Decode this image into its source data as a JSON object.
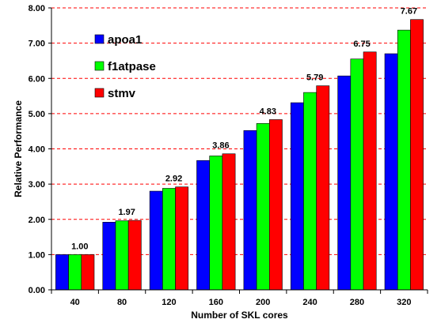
{
  "chart_data": {
    "type": "bar",
    "title": "",
    "xlabel": "Number of SKL cores",
    "ylabel": "Relative Performance",
    "categories": [
      "40",
      "80",
      "120",
      "160",
      "200",
      "240",
      "280",
      "320"
    ],
    "series": [
      {
        "name": "apoa1",
        "color": "#0000ff",
        "values": [
          1.0,
          1.92,
          2.8,
          3.67,
          4.52,
          5.31,
          6.07,
          6.7
        ]
      },
      {
        "name": "f1atpase",
        "color": "#00ff00",
        "values": [
          1.0,
          1.96,
          2.88,
          3.8,
          4.72,
          5.6,
          6.55,
          7.37
        ]
      },
      {
        "name": "stmv",
        "color": "#ff0000",
        "values": [
          1.0,
          1.97,
          2.92,
          3.86,
          4.83,
          5.79,
          6.75,
          7.67
        ]
      }
    ],
    "data_labels": {
      "series": "stmv",
      "values": [
        "1.00",
        "1.97",
        "2.92",
        "3.86",
        "4.83",
        "5.79",
        "6.75",
        "7.67"
      ]
    },
    "ylim": [
      0,
      8
    ],
    "yticks": [
      "0.00",
      "1.00",
      "2.00",
      "3.00",
      "4.00",
      "5.00",
      "6.00",
      "7.00",
      "8.00"
    ],
    "grid": "horizontal dashed, red",
    "legend_position": "top-left",
    "gridline_color": "#ff0000"
  }
}
